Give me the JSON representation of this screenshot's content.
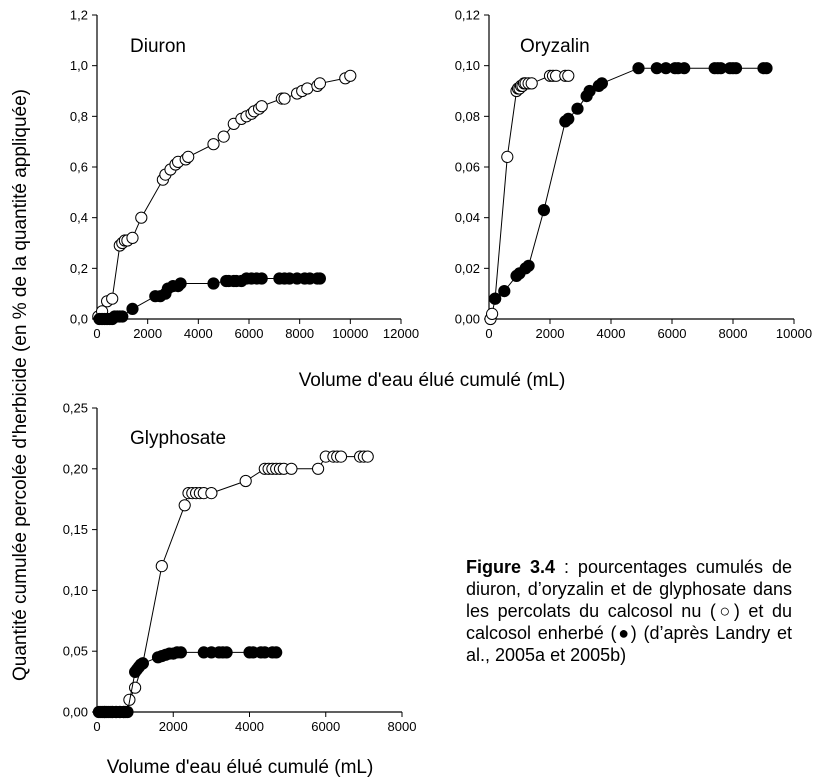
{
  "figure": {
    "ylabel": "Quantité cumulée percolée d'herbicide (en % de la quantité appliquée)",
    "xlabel_top": "Volume d'eau élué cumulé (mL)",
    "xlabel_bottom": "Volume d'eau élué cumulé (mL)",
    "caption": {
      "figure_label": "Figure 3.4",
      "text": " : pourcentages cumulés de diuron, d’oryzalin et de glyphosate dans les percolats du calcosol nu (○) et du calcosol enherbé (●) (d’après Landry et al., 2005a et 2005b)"
    }
  },
  "chart_data": [
    {
      "type": "line",
      "title": "Diuron",
      "xlim": [
        0,
        12000
      ],
      "ylim": [
        0,
        1.2
      ],
      "xticks": [
        "0",
        "2000",
        "4000",
        "6000",
        "8000",
        "10000",
        "12000"
      ],
      "yticks": [
        "0,0",
        "0,2",
        "0,4",
        "0,6",
        "0,8",
        "1,0",
        "1,2"
      ],
      "series": [
        {
          "name": "calcosol nu (○)",
          "marker": "open",
          "x": [
            50,
            200,
            400,
            600,
            900,
            1000,
            1100,
            1200,
            1400,
            1750,
            2600,
            2700,
            2900,
            3100,
            3200,
            3500,
            3600,
            4600,
            5000,
            5400,
            5700,
            5900,
            6100,
            6200,
            6400,
            6500,
            7300,
            7400,
            7900,
            8100,
            8300,
            8700,
            8800,
            9800,
            10000
          ],
          "y": [
            0.01,
            0.03,
            0.07,
            0.08,
            0.29,
            0.3,
            0.31,
            0.31,
            0.32,
            0.4,
            0.55,
            0.57,
            0.59,
            0.61,
            0.62,
            0.63,
            0.64,
            0.69,
            0.72,
            0.77,
            0.79,
            0.8,
            0.81,
            0.82,
            0.83,
            0.84,
            0.87,
            0.87,
            0.89,
            0.9,
            0.91,
            0.92,
            0.93,
            0.95,
            0.96
          ]
        },
        {
          "name": "calcosol enherbé (●)",
          "marker": "filled",
          "x": [
            100,
            200,
            300,
            400,
            500,
            600,
            700,
            800,
            900,
            1000,
            1400,
            2300,
            2500,
            2700,
            2800,
            3000,
            3200,
            3300,
            4600,
            5100,
            5200,
            5400,
            5500,
            5700,
            5900,
            6100,
            6300,
            6500,
            7200,
            7400,
            7600,
            7900,
            8200,
            8400,
            8700,
            8800
          ],
          "y": [
            0.0,
            0.0,
            0.0,
            0.0,
            0.0,
            0.0,
            0.01,
            0.01,
            0.01,
            0.01,
            0.04,
            0.09,
            0.09,
            0.1,
            0.12,
            0.13,
            0.13,
            0.14,
            0.14,
            0.15,
            0.15,
            0.15,
            0.15,
            0.15,
            0.16,
            0.16,
            0.16,
            0.16,
            0.16,
            0.16,
            0.16,
            0.16,
            0.16,
            0.16,
            0.16,
            0.16
          ]
        }
      ]
    },
    {
      "type": "line",
      "title": "Oryzalin",
      "xlim": [
        0,
        10000
      ],
      "ylim": [
        0,
        0.12
      ],
      "xticks": [
        "0",
        "2000",
        "4000",
        "6000",
        "8000",
        "10000"
      ],
      "yticks": [
        "0,00",
        "0,02",
        "0,04",
        "0,06",
        "0,08",
        "0,10",
        "0,12"
      ],
      "series": [
        {
          "name": "calcosol nu (○)",
          "marker": "open",
          "x": [
            50,
            100,
            200,
            600,
            900,
            950,
            1000,
            1050,
            1100,
            1150,
            1200,
            1300,
            1400,
            2000,
            2100,
            2200,
            2500,
            2600
          ],
          "y": [
            0.0,
            0.002,
            0.008,
            0.064,
            0.09,
            0.091,
            0.091,
            0.092,
            0.092,
            0.093,
            0.093,
            0.093,
            0.093,
            0.096,
            0.096,
            0.096,
            0.096,
            0.096
          ]
        },
        {
          "name": "calcosol enherbé (●)",
          "marker": "filled",
          "x": [
            200,
            500,
            900,
            1000,
            1200,
            1300,
            1800,
            2500,
            2600,
            2900,
            3200,
            3300,
            3600,
            3700,
            4900,
            5500,
            5800,
            6100,
            6200,
            6400,
            7400,
            7500,
            7600,
            7900,
            8000,
            8100,
            9000,
            9100
          ],
          "y": [
            0.008,
            0.011,
            0.017,
            0.018,
            0.02,
            0.021,
            0.043,
            0.078,
            0.079,
            0.083,
            0.088,
            0.09,
            0.092,
            0.093,
            0.099,
            0.099,
            0.099,
            0.099,
            0.099,
            0.099,
            0.099,
            0.099,
            0.099,
            0.099,
            0.099,
            0.099,
            0.099,
            0.099
          ]
        }
      ]
    },
    {
      "type": "line",
      "title": "Glyphosate",
      "xlim": [
        0,
        8000
      ],
      "ylim": [
        0,
        0.25
      ],
      "xticks": [
        "0",
        "2000",
        "4000",
        "6000",
        "8000"
      ],
      "yticks": [
        "0,00",
        "0,05",
        "0,10",
        "0,15",
        "0,20",
        "0,25"
      ],
      "series": [
        {
          "name": "calcosol nu (○)",
          "marker": "open",
          "x": [
            200,
            400,
            500,
            600,
            700,
            750,
            850,
            1000,
            1200,
            1700,
            2300,
            2400,
            2500,
            2600,
            2700,
            2800,
            3000,
            3900,
            4400,
            4500,
            4600,
            4700,
            4800,
            4900,
            5100,
            5800,
            6000,
            6200,
            6300,
            6400,
            6900,
            7000,
            7100
          ],
          "y": [
            0.0,
            0.0,
            0.0,
            0.0,
            0.0,
            0.0,
            0.01,
            0.02,
            0.04,
            0.12,
            0.17,
            0.18,
            0.18,
            0.18,
            0.18,
            0.18,
            0.18,
            0.19,
            0.2,
            0.2,
            0.2,
            0.2,
            0.2,
            0.2,
            0.2,
            0.2,
            0.21,
            0.21,
            0.21,
            0.21,
            0.21,
            0.21,
            0.21
          ]
        },
        {
          "name": "calcosol enherbé (●)",
          "marker": "filled",
          "x": [
            50,
            100,
            150,
            200,
            250,
            300,
            350,
            400,
            500,
            600,
            700,
            800,
            1000,
            1050,
            1100,
            1150,
            1200,
            1600,
            1700,
            1800,
            1900,
            2000,
            2100,
            2200,
            2800,
            3000,
            3200,
            3300,
            3400,
            4000,
            4100,
            4300,
            4400,
            4600,
            4700
          ],
          "y": [
            0.0,
            0.0,
            0.0,
            0.0,
            0.0,
            0.0,
            0.0,
            0.0,
            0.0,
            0.0,
            0.0,
            0.0,
            0.033,
            0.035,
            0.037,
            0.039,
            0.04,
            0.045,
            0.046,
            0.047,
            0.048,
            0.048,
            0.049,
            0.049,
            0.049,
            0.049,
            0.049,
            0.049,
            0.049,
            0.049,
            0.049,
            0.049,
            0.049,
            0.049,
            0.049
          ]
        }
      ]
    }
  ]
}
